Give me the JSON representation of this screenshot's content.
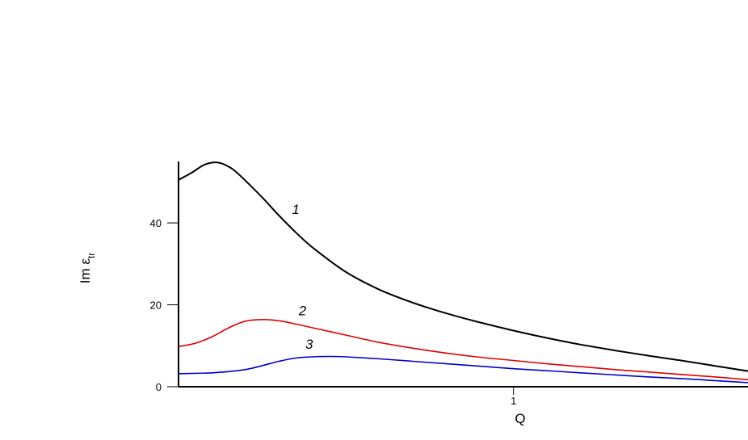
{
  "chart_data": {
    "type": "line",
    "title": "",
    "xlabel": "Q",
    "ylabel": "Im ε",
    "ylabel_sub": "tr",
    "xlim": [
      0,
      1.7
    ],
    "ylim": [
      0,
      55
    ],
    "x_ticks": [
      1
    ],
    "y_ticks": [
      0,
      20,
      40
    ],
    "grid": false,
    "legend": "none",
    "series": [
      {
        "label": "1",
        "color": "#000000",
        "x": [
          0,
          0.04,
          0.08,
          0.12,
          0.16,
          0.2,
          0.25,
          0.3,
          0.35,
          0.4,
          0.5,
          0.6,
          0.7,
          0.8,
          0.9,
          1.0,
          1.1,
          1.2,
          1.3,
          1.4,
          1.5,
          1.6,
          1.7
        ],
        "y": [
          50.5,
          52.3,
          54.3,
          54.7,
          53.2,
          50.3,
          46.2,
          41.8,
          37.7,
          34.0,
          28.0,
          23.7,
          20.5,
          17.9,
          15.7,
          13.7,
          11.9,
          10.3,
          8.9,
          7.6,
          6.4,
          5.1,
          3.8
        ]
      },
      {
        "label": "2",
        "color": "#e00000",
        "x": [
          0,
          0.05,
          0.1,
          0.15,
          0.2,
          0.25,
          0.3,
          0.35,
          0.4,
          0.5,
          0.6,
          0.7,
          0.8,
          0.9,
          1.0,
          1.1,
          1.2,
          1.3,
          1.4,
          1.5,
          1.6,
          1.7
        ],
        "y": [
          9.8,
          10.6,
          12.2,
          14.4,
          16.0,
          16.4,
          16.1,
          15.3,
          14.4,
          12.6,
          10.8,
          9.4,
          8.2,
          7.2,
          6.4,
          5.6,
          4.9,
          4.2,
          3.6,
          3.0,
          2.4,
          1.7
        ]
      },
      {
        "label": "3",
        "color": "#0000cc",
        "x": [
          0,
          0.1,
          0.2,
          0.3,
          0.35,
          0.4,
          0.45,
          0.5,
          0.6,
          0.7,
          0.8,
          0.9,
          1.0,
          1.1,
          1.2,
          1.3,
          1.4,
          1.5,
          1.6,
          1.7
        ],
        "y": [
          3.2,
          3.4,
          4.2,
          6.2,
          7.0,
          7.3,
          7.4,
          7.3,
          6.8,
          6.2,
          5.6,
          5.0,
          4.4,
          3.9,
          3.4,
          2.9,
          2.4,
          2.0,
          1.5,
          1.0
        ]
      }
    ]
  }
}
